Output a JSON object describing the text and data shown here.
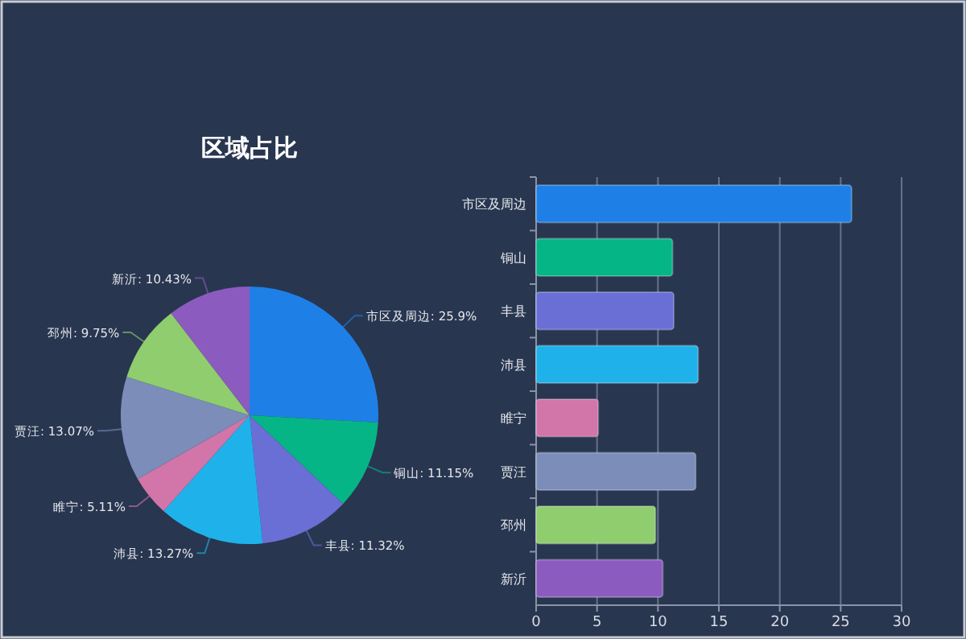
{
  "chart_data": [
    {
      "type": "pie",
      "title": "区域占比",
      "categories": [
        "市区及周边",
        "铜山",
        "丰县",
        "沛县",
        "睢宁",
        "贾汪",
        "邳州",
        "新沂"
      ],
      "values": [
        25.9,
        11.15,
        11.32,
        13.27,
        5.11,
        13.07,
        9.75,
        10.43
      ],
      "value_labels": [
        "25.9%",
        "11.15%",
        "11.32%",
        "13.27%",
        "5.11%",
        "13.07%",
        "9.75%",
        "10.43%"
      ],
      "colors": [
        "#1e80e6",
        "#06b586",
        "#6a6fd6",
        "#1fb2ea",
        "#d275a8",
        "#7b8db8",
        "#8fcd6e",
        "#8c5bbf"
      ]
    },
    {
      "type": "bar",
      "orientation": "horizontal",
      "categories": [
        "市区及周边",
        "铜山",
        "丰县",
        "沛县",
        "睢宁",
        "贾汪",
        "邳州",
        "新沂"
      ],
      "values": [
        25.9,
        11.2,
        11.3,
        13.3,
        5.1,
        13.1,
        9.8,
        10.4
      ],
      "colors": [
        "#1e80e6",
        "#06b586",
        "#6a6fd6",
        "#1fb2ea",
        "#d275a8",
        "#7b8db8",
        "#8fcd6e",
        "#8c5bbf"
      ],
      "xlim": [
        0,
        30
      ],
      "xticks": [
        0,
        5,
        10,
        15,
        20,
        25,
        30
      ],
      "grid": "x"
    }
  ]
}
